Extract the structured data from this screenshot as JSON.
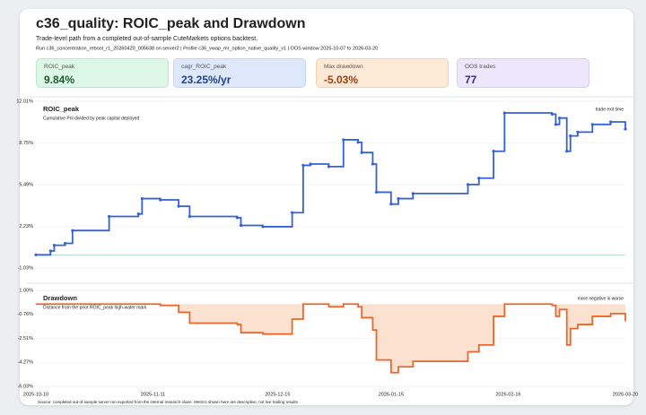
{
  "header": {
    "title": "c36_quality: ROIC_peak and Drawdown",
    "subtitle": "Trade-level path from a completed out-of-sample CuteMarkets options backtest.",
    "run": "Run c36_concentration_reboot_r1_20260420_005638 on server2 | Profile c36_vwap_mr_option_native_quality_v1 | OOS window 2025-10-07 to 2026-03-20"
  },
  "kpis": [
    {
      "label": "ROIC_peak",
      "value": "9.84%"
    },
    {
      "label": "cagr_ROIC_peak",
      "value": "23.25%/yr"
    },
    {
      "label": "Max drawdown",
      "value": "-5.03%"
    },
    {
      "label": "OOS trades",
      "value": "77"
    }
  ],
  "chart_data": [
    {
      "type": "line",
      "title": "ROIC_peak",
      "subtitle": "Cumulative Pnl divided by peak capital deployed",
      "note": "trade exit time",
      "step": true,
      "markers": true,
      "fill": false,
      "x": [
        "2025-10-10",
        "2025-10-14",
        "2025-10-15",
        "2025-10-18",
        "2025-10-20",
        "2025-10-30",
        "2025-11-07",
        "2025-11-08",
        "2025-11-13",
        "2025-11-18",
        "2025-11-21",
        "2025-12-04",
        "2025-12-05",
        "2025-12-11",
        "2025-12-19",
        "2025-12-22",
        "2025-12-24",
        "2025-12-29",
        "2026-01-02",
        "2026-01-06",
        "2026-01-07",
        "2026-01-10",
        "2026-01-11",
        "2026-01-15",
        "2026-01-17",
        "2026-01-21",
        "2026-02-05",
        "2026-02-08",
        "2026-02-12",
        "2026-02-15",
        "2026-02-28",
        "2026-03-01",
        "2026-03-02",
        "2026-03-04",
        "2026-03-05",
        "2026-03-07",
        "2026-03-11",
        "2026-03-16",
        "2026-03-20"
      ],
      "series": [
        {
          "name": "ROIC_peak",
          "color": "#3361d8",
          "values": [
            0,
            0.3,
            0.75,
            0.9,
            1.9,
            3.0,
            3.2,
            4.4,
            4.3,
            3.8,
            3.0,
            2.9,
            2.3,
            2.2,
            3.3,
            7.0,
            7.1,
            6.9,
            9.0,
            8.8,
            8.0,
            7.1,
            4.9,
            3.97,
            4.4,
            4.8,
            5.5,
            6.0,
            8.1,
            11.1,
            11.0,
            10.2,
            10.7,
            8.1,
            9.3,
            9.6,
            10.2,
            10.4,
            9.84
          ]
        }
      ],
      "xlim": [
        "2025-10-10",
        "2026-03-20"
      ],
      "ylim": [
        -1.03,
        12.01
      ],
      "yticks": [
        {
          "value": -1.03,
          "label": "-1.03%"
        },
        {
          "value": 2.23,
          "label": "2.23%"
        },
        {
          "value": 5.49,
          "label": "5.49%"
        },
        {
          "value": 8.75,
          "label": "8.75%"
        },
        {
          "value": 12.01,
          "label": "12.01%"
        }
      ],
      "grid": true
    },
    {
      "type": "line",
      "title": "Drawdown",
      "subtitle": "Distance from the prior ROIC_peak high-water mark",
      "note": "more negative is worse",
      "step": true,
      "markers": false,
      "fill": true,
      "x": [
        "2025-10-10",
        "2025-10-14",
        "2025-10-15",
        "2025-10-18",
        "2025-10-20",
        "2025-10-30",
        "2025-11-07",
        "2025-11-08",
        "2025-11-13",
        "2025-11-18",
        "2025-11-21",
        "2025-12-04",
        "2025-12-05",
        "2025-12-11",
        "2025-12-19",
        "2025-12-22",
        "2025-12-24",
        "2025-12-29",
        "2026-01-02",
        "2026-01-06",
        "2026-01-07",
        "2026-01-10",
        "2026-01-11",
        "2026-01-15",
        "2026-01-17",
        "2026-01-21",
        "2026-02-05",
        "2026-02-08",
        "2026-02-12",
        "2026-02-15",
        "2026-02-28",
        "2026-03-01",
        "2026-03-02",
        "2026-03-04",
        "2026-03-05",
        "2026-03-07",
        "2026-03-11",
        "2026-03-16",
        "2026-03-20"
      ],
      "series": [
        {
          "name": "Drawdown",
          "color": "#e8672c",
          "values": [
            0,
            0,
            0,
            0,
            0,
            0,
            0,
            0,
            -0.1,
            -0.6,
            -1.4,
            -1.5,
            -2.1,
            -2.2,
            -1.1,
            0,
            0,
            -0.2,
            0,
            -0.2,
            -1.0,
            -1.9,
            -4.1,
            -5.03,
            -4.6,
            -4.2,
            -3.5,
            -3.0,
            -0.9,
            0,
            -0.1,
            -0.9,
            -0.4,
            -3.0,
            -1.8,
            -1.5,
            -0.9,
            -0.7,
            -1.26
          ]
        }
      ],
      "xlim": [
        "2025-10-10",
        "2026-03-20"
      ],
      "xticks": [
        "2025-10-10",
        "2025-11-11",
        "2025-12-15",
        "2026-01-15",
        "2026-02-16",
        "2026-03-20"
      ],
      "ylim": [
        -6.03,
        1.0
      ],
      "yticks": [
        {
          "value": -6.03,
          "label": "-6.03%"
        },
        {
          "value": -4.27,
          "label": "-4.27%"
        },
        {
          "value": -2.51,
          "label": "-2.51%"
        },
        {
          "value": -0.76,
          "label": "-0.76%"
        },
        {
          "value": 1.0,
          "label": "1.00%"
        }
      ],
      "grid": true
    }
  ],
  "footer": {
    "source": "Source: completed out-of-sample server run exported from the internal research share. Metrics shown here are descriptive, not live trading results."
  }
}
